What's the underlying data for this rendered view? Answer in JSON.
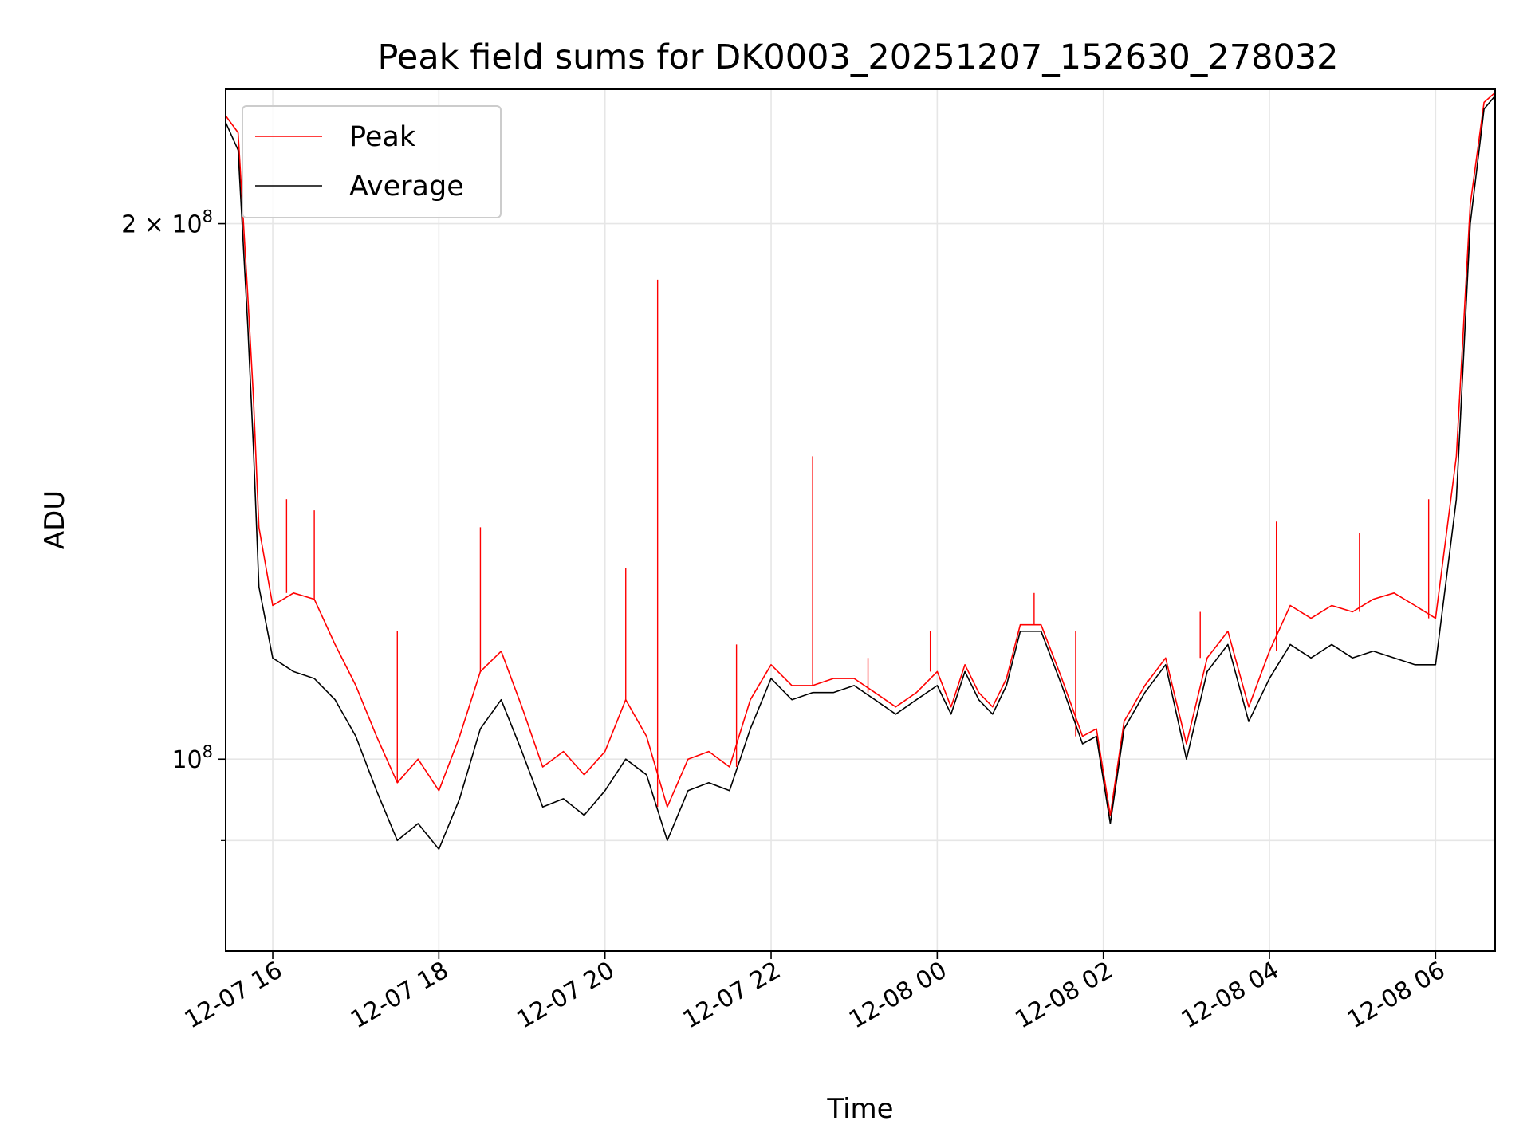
{
  "chart_data": {
    "type": "line",
    "title": "Peak field sums for DK0003_20251207_152630_278032",
    "xlabel": "Time",
    "ylabel": "ADU",
    "yscale": "log",
    "grid": true,
    "legend_position": "top-left",
    "xlim": [
      "2025-12-07 15:26",
      "2025-12-08 06:43"
    ],
    "ylim": [
      78000000,
      238000000
    ],
    "x_ticks": [
      {
        "value": "2025-12-07 16:00",
        "label": "12-07 16"
      },
      {
        "value": "2025-12-07 18:00",
        "label": "12-07 18"
      },
      {
        "value": "2025-12-07 20:00",
        "label": "12-07 20"
      },
      {
        "value": "2025-12-07 22:00",
        "label": "12-07 22"
      },
      {
        "value": "2025-12-08 00:00",
        "label": "12-08 00"
      },
      {
        "value": "2025-12-08 02:00",
        "label": "12-08 02"
      },
      {
        "value": "2025-12-08 04:00",
        "label": "12-08 04"
      },
      {
        "value": "2025-12-08 06:00",
        "label": "12-08 06"
      }
    ],
    "y_ticks": [
      {
        "value": 100000000,
        "mantissa": "",
        "exponent": "8"
      },
      {
        "value": 200000000,
        "mantissa": "2",
        "exponent": "8"
      }
    ],
    "y_minor_ticks": [
      90000000
    ],
    "series": [
      {
        "name": "Average",
        "color": "#000000",
        "points": [
          [
            "2025-12-07 15:26",
            228000000
          ],
          [
            "2025-12-07 15:35",
            220000000
          ],
          [
            "2025-12-07 15:42",
            175000000
          ],
          [
            "2025-12-07 15:46",
            150000000
          ],
          [
            "2025-12-07 15:50",
            125000000
          ],
          [
            "2025-12-07 16:00",
            114000000
          ],
          [
            "2025-12-07 16:15",
            112000000
          ],
          [
            "2025-12-07 16:30",
            111000000
          ],
          [
            "2025-12-07 16:45",
            108000000
          ],
          [
            "2025-12-07 17:00",
            103000000
          ],
          [
            "2025-12-07 17:15",
            96000000
          ],
          [
            "2025-12-07 17:30",
            90000000
          ],
          [
            "2025-12-07 17:45",
            92000000
          ],
          [
            "2025-12-07 18:00",
            89000000
          ],
          [
            "2025-12-07 18:15",
            95000000
          ],
          [
            "2025-12-07 18:30",
            104000000
          ],
          [
            "2025-12-07 18:45",
            108000000
          ],
          [
            "2025-12-07 19:00",
            101000000
          ],
          [
            "2025-12-07 19:15",
            94000000
          ],
          [
            "2025-12-07 19:30",
            95000000
          ],
          [
            "2025-12-07 19:45",
            93000000
          ],
          [
            "2025-12-07 20:00",
            96000000
          ],
          [
            "2025-12-07 20:15",
            100000000
          ],
          [
            "2025-12-07 20:30",
            98000000
          ],
          [
            "2025-12-07 20:45",
            90000000
          ],
          [
            "2025-12-07 21:00",
            96000000
          ],
          [
            "2025-12-07 21:15",
            97000000
          ],
          [
            "2025-12-07 21:30",
            96000000
          ],
          [
            "2025-12-07 21:45",
            104000000
          ],
          [
            "2025-12-07 22:00",
            111000000
          ],
          [
            "2025-12-07 22:15",
            108000000
          ],
          [
            "2025-12-07 22:30",
            109000000
          ],
          [
            "2025-12-07 22:45",
            109000000
          ],
          [
            "2025-12-07 23:00",
            110000000
          ],
          [
            "2025-12-07 23:15",
            108000000
          ],
          [
            "2025-12-07 23:30",
            106000000
          ],
          [
            "2025-12-07 23:45",
            108000000
          ],
          [
            "2025-12-08 00:00",
            110000000
          ],
          [
            "2025-12-08 00:10",
            106000000
          ],
          [
            "2025-12-08 00:20",
            112000000
          ],
          [
            "2025-12-08 00:30",
            108000000
          ],
          [
            "2025-12-08 00:40",
            106000000
          ],
          [
            "2025-12-08 00:50",
            110000000
          ],
          [
            "2025-12-08 01:00",
            118000000
          ],
          [
            "2025-12-08 01:15",
            118000000
          ],
          [
            "2025-12-08 01:30",
            110000000
          ],
          [
            "2025-12-08 01:45",
            102000000
          ],
          [
            "2025-12-08 01:55",
            103000000
          ],
          [
            "2025-12-08 02:05",
            92000000
          ],
          [
            "2025-12-08 02:15",
            104000000
          ],
          [
            "2025-12-08 02:30",
            109000000
          ],
          [
            "2025-12-08 02:45",
            113000000
          ],
          [
            "2025-12-08 03:00",
            100000000
          ],
          [
            "2025-12-08 03:15",
            112000000
          ],
          [
            "2025-12-08 03:30",
            116000000
          ],
          [
            "2025-12-08 03:45",
            105000000
          ],
          [
            "2025-12-08 04:00",
            111000000
          ],
          [
            "2025-12-08 04:15",
            116000000
          ],
          [
            "2025-12-08 04:30",
            114000000
          ],
          [
            "2025-12-08 04:45",
            116000000
          ],
          [
            "2025-12-08 05:00",
            114000000
          ],
          [
            "2025-12-08 05:15",
            115000000
          ],
          [
            "2025-12-08 05:30",
            114000000
          ],
          [
            "2025-12-08 05:45",
            113000000
          ],
          [
            "2025-12-08 06:00",
            113000000
          ],
          [
            "2025-12-08 06:15",
            140000000
          ],
          [
            "2025-12-08 06:25",
            200000000
          ],
          [
            "2025-12-08 06:35",
            232000000
          ],
          [
            "2025-12-08 06:43",
            236000000
          ]
        ]
      },
      {
        "name": "Peak",
        "color": "#ff0000",
        "points": [
          [
            "2025-12-07 15:26",
            230000000
          ],
          [
            "2025-12-07 15:35",
            225000000
          ],
          [
            "2025-12-07 15:42",
            182000000
          ],
          [
            "2025-12-07 15:46",
            160000000
          ],
          [
            "2025-12-07 15:50",
            135000000
          ],
          [
            "2025-12-07 16:00",
            122000000
          ],
          [
            "2025-12-07 16:15",
            124000000
          ],
          [
            "2025-12-07 16:30",
            123000000
          ],
          [
            "2025-12-07 16:45",
            116000000
          ],
          [
            "2025-12-07 17:00",
            110000000
          ],
          [
            "2025-12-07 17:15",
            103000000
          ],
          [
            "2025-12-07 17:30",
            97000000
          ],
          [
            "2025-12-07 17:45",
            100000000
          ],
          [
            "2025-12-07 18:00",
            96000000
          ],
          [
            "2025-12-07 18:15",
            103000000
          ],
          [
            "2025-12-07 18:30",
            112000000
          ],
          [
            "2025-12-07 18:45",
            115000000
          ],
          [
            "2025-12-07 19:00",
            107000000
          ],
          [
            "2025-12-07 19:15",
            99000000
          ],
          [
            "2025-12-07 19:30",
            101000000
          ],
          [
            "2025-12-07 19:45",
            98000000
          ],
          [
            "2025-12-07 20:00",
            101000000
          ],
          [
            "2025-12-07 20:15",
            108000000
          ],
          [
            "2025-12-07 20:30",
            103000000
          ],
          [
            "2025-12-07 20:45",
            94000000
          ],
          [
            "2025-12-07 21:00",
            100000000
          ],
          [
            "2025-12-07 21:15",
            101000000
          ],
          [
            "2025-12-07 21:30",
            99000000
          ],
          [
            "2025-12-07 21:45",
            108000000
          ],
          [
            "2025-12-07 22:00",
            113000000
          ],
          [
            "2025-12-07 22:15",
            110000000
          ],
          [
            "2025-12-07 22:30",
            110000000
          ],
          [
            "2025-12-07 22:45",
            111000000
          ],
          [
            "2025-12-07 23:00",
            111000000
          ],
          [
            "2025-12-07 23:15",
            109000000
          ],
          [
            "2025-12-07 23:30",
            107000000
          ],
          [
            "2025-12-07 23:45",
            109000000
          ],
          [
            "2025-12-08 00:00",
            112000000
          ],
          [
            "2025-12-08 00:10",
            107000000
          ],
          [
            "2025-12-08 00:20",
            113000000
          ],
          [
            "2025-12-08 00:30",
            109000000
          ],
          [
            "2025-12-08 00:40",
            107000000
          ],
          [
            "2025-12-08 00:50",
            111000000
          ],
          [
            "2025-12-08 01:00",
            119000000
          ],
          [
            "2025-12-08 01:15",
            119000000
          ],
          [
            "2025-12-08 01:30",
            111000000
          ],
          [
            "2025-12-08 01:45",
            103000000
          ],
          [
            "2025-12-08 01:55",
            104000000
          ],
          [
            "2025-12-08 02:05",
            93000000
          ],
          [
            "2025-12-08 02:15",
            105000000
          ],
          [
            "2025-12-08 02:30",
            110000000
          ],
          [
            "2025-12-08 02:45",
            114000000
          ],
          [
            "2025-12-08 03:00",
            102000000
          ],
          [
            "2025-12-08 03:15",
            114000000
          ],
          [
            "2025-12-08 03:30",
            118000000
          ],
          [
            "2025-12-08 03:45",
            107000000
          ],
          [
            "2025-12-08 04:00",
            115000000
          ],
          [
            "2025-12-08 04:15",
            122000000
          ],
          [
            "2025-12-08 04:30",
            120000000
          ],
          [
            "2025-12-08 04:45",
            122000000
          ],
          [
            "2025-12-08 05:00",
            121000000
          ],
          [
            "2025-12-08 05:15",
            123000000
          ],
          [
            "2025-12-08 05:30",
            124000000
          ],
          [
            "2025-12-08 05:45",
            122000000
          ],
          [
            "2025-12-08 06:00",
            120000000
          ],
          [
            "2025-12-08 06:15",
            148000000
          ],
          [
            "2025-12-08 06:25",
            205000000
          ],
          [
            "2025-12-08 06:35",
            234000000
          ],
          [
            "2025-12-08 06:43",
            237000000
          ]
        ],
        "spikes": [
          [
            "2025-12-07 16:10",
            140000000
          ],
          [
            "2025-12-07 16:30",
            138000000
          ],
          [
            "2025-12-07 17:30",
            118000000
          ],
          [
            "2025-12-07 18:30",
            135000000
          ],
          [
            "2025-12-07 20:15",
            128000000
          ],
          [
            "2025-12-07 20:38",
            186000000
          ],
          [
            "2025-12-07 21:35",
            116000000
          ],
          [
            "2025-12-07 22:30",
            148000000
          ],
          [
            "2025-12-07 23:10",
            114000000
          ],
          [
            "2025-12-07 23:55",
            118000000
          ],
          [
            "2025-12-08 01:10",
            124000000
          ],
          [
            "2025-12-08 01:40",
            118000000
          ],
          [
            "2025-12-08 03:10",
            121000000
          ],
          [
            "2025-12-08 04:05",
            136000000
          ],
          [
            "2025-12-08 05:05",
            134000000
          ],
          [
            "2025-12-08 05:55",
            140000000
          ]
        ]
      }
    ]
  }
}
